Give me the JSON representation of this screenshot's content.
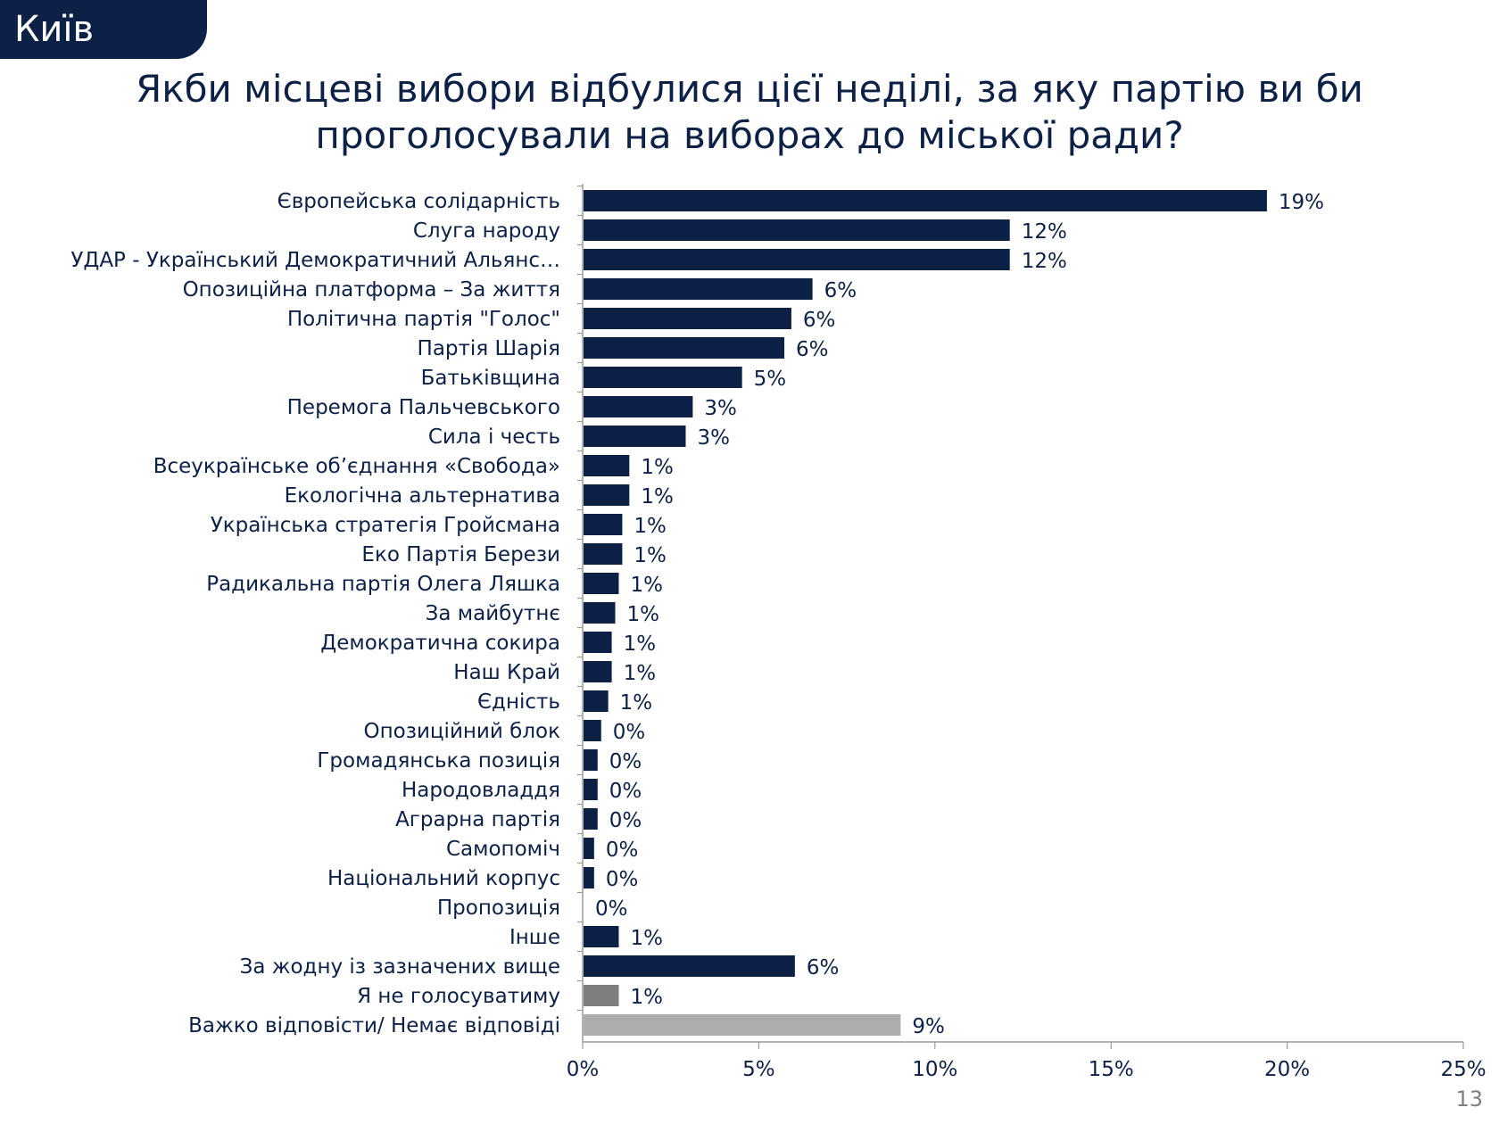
{
  "header": {
    "city": "Київ",
    "title_lines": [
      "Якби місцеві вибори відбулися цієї неділі, за яку партію ви би",
      "проголосували на виборах до міської ради?"
    ]
  },
  "page_number": "13",
  "colors": {
    "primary": "#0d2146",
    "dont_vote": "#7f7f7f",
    "hard_to_say": "#adadad",
    "axis": "#9a9a9a"
  },
  "chart_data": {
    "type": "bar",
    "orientation": "horizontal",
    "title": "Якби місцеві вибори відбулися цієї неділі, за яку партію ви би проголосували на виборах до міської ради?",
    "categories": [
      "Європейська солідарність",
      "Слуга народу",
      "УДАР - Український Демократичний Альянс…",
      "Опозиційна платформа – За життя",
      "Політична партія \"Голос\"",
      "Партія Шарія",
      "Батьківщина",
      "Перемога Пальчевського",
      "Сила і честь",
      "Всеукраїнське об’єднання «Свобода»",
      "Екологічна альтернатива",
      "Українська стратегія Гройсмана",
      "Еко Партія Берези",
      "Радикальна партія Олега Ляшка",
      "За майбутнє",
      "Демократична сокира",
      "Наш Край",
      "Єдність",
      "Опозиційний блок",
      "Громадянська позиція",
      "Народовладдя",
      "Аграрна партія",
      "Самопоміч",
      "Національний корпус",
      "Пропозиція",
      "Інше",
      "За жодну із зазначених вище",
      "Я не голосуватиму",
      "Важко відповісти/ Немає відповіді"
    ],
    "values": [
      19.4,
      12.1,
      12.1,
      6.5,
      5.9,
      5.7,
      4.5,
      3.1,
      2.9,
      1.3,
      1.3,
      1.1,
      1.1,
      1.0,
      0.9,
      0.8,
      0.8,
      0.7,
      0.5,
      0.4,
      0.4,
      0.4,
      0.3,
      0.3,
      0.0,
      1.0,
      6.0,
      1.0,
      9.0
    ],
    "data_labels": [
      "19%",
      "12%",
      "12%",
      "6%",
      "6%",
      "6%",
      "5%",
      "3%",
      "3%",
      "1%",
      "1%",
      "1%",
      "1%",
      "1%",
      "1%",
      "1%",
      "1%",
      "1%",
      "0%",
      "0%",
      "0%",
      "0%",
      "0%",
      "0%",
      "0%",
      "1%",
      "6%",
      "1%",
      "9%"
    ],
    "bar_colors": [
      "#0d2146",
      "#0d2146",
      "#0d2146",
      "#0d2146",
      "#0d2146",
      "#0d2146",
      "#0d2146",
      "#0d2146",
      "#0d2146",
      "#0d2146",
      "#0d2146",
      "#0d2146",
      "#0d2146",
      "#0d2146",
      "#0d2146",
      "#0d2146",
      "#0d2146",
      "#0d2146",
      "#0d2146",
      "#0d2146",
      "#0d2146",
      "#0d2146",
      "#0d2146",
      "#0d2146",
      "#0d2146",
      "#0d2146",
      "#0d2146",
      "#7f7f7f",
      "#adadad"
    ],
    "xlim": [
      0,
      25
    ],
    "x_ticks": [
      0,
      5,
      10,
      15,
      20,
      25
    ],
    "x_tick_labels": [
      "0%",
      "5%",
      "10%",
      "15%",
      "20%",
      "25%"
    ],
    "grid": false,
    "legend": "none"
  }
}
